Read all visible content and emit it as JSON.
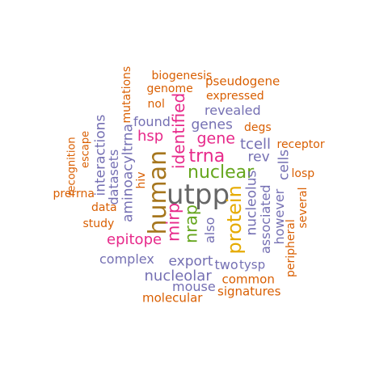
{
  "colors": {
    "orange": "#d95f02",
    "purple": "#7570b3",
    "magenta": "#e7298a",
    "green": "#66a61e",
    "gold": "#e6ab02",
    "brown": "#a6761d",
    "gray": "#666666"
  },
  "words": [
    {
      "text": "biogenesis",
      "color": "orange"
    },
    {
      "text": "genome",
      "color": "orange"
    },
    {
      "text": "pseudogene",
      "color": "orange"
    },
    {
      "text": "expressed",
      "color": "orange"
    },
    {
      "text": "nol",
      "color": "orange"
    },
    {
      "text": "revealed",
      "color": "purple"
    },
    {
      "text": "mutations",
      "color": "orange"
    },
    {
      "text": "identified",
      "color": "magenta"
    },
    {
      "text": "found",
      "color": "purple"
    },
    {
      "text": "genes",
      "color": "purple"
    },
    {
      "text": "degs",
      "color": "orange"
    },
    {
      "text": "hsp",
      "color": "magenta"
    },
    {
      "text": "gene",
      "color": "magenta"
    },
    {
      "text": "receptor",
      "color": "orange"
    },
    {
      "text": "tcell",
      "color": "purple"
    },
    {
      "text": "aminoacyltrna",
      "color": "purple"
    },
    {
      "text": "trna",
      "color": "magenta"
    },
    {
      "text": "rev",
      "color": "purple"
    },
    {
      "text": "escape",
      "color": "orange"
    },
    {
      "text": "recognition",
      "color": "orange"
    },
    {
      "text": "interactions",
      "color": "purple"
    },
    {
      "text": "cells",
      "color": "purple"
    },
    {
      "text": "nuclear",
      "color": "green"
    },
    {
      "text": "losp",
      "color": "orange"
    },
    {
      "text": "datasets",
      "color": "purple"
    },
    {
      "text": "hiv",
      "color": "orange"
    },
    {
      "text": "human",
      "color": "brown"
    },
    {
      "text": "utpp",
      "color": "gray"
    },
    {
      "text": "prerrna",
      "color": "orange"
    },
    {
      "text": "protein",
      "color": "gold"
    },
    {
      "text": "nucleolus",
      "color": "purple"
    },
    {
      "text": "several",
      "color": "orange"
    },
    {
      "text": "data",
      "color": "orange"
    },
    {
      "text": "associated",
      "color": "purple"
    },
    {
      "text": "however",
      "color": "purple"
    },
    {
      "text": "study",
      "color": "orange"
    },
    {
      "text": "mirp",
      "color": "magenta"
    },
    {
      "text": "nrap",
      "color": "green"
    },
    {
      "text": "also",
      "color": "purple"
    },
    {
      "text": "epitope",
      "color": "magenta"
    },
    {
      "text": "peripheral",
      "color": "orange"
    },
    {
      "text": "complex",
      "color": "purple"
    },
    {
      "text": "export",
      "color": "purple"
    },
    {
      "text": "two",
      "color": "purple"
    },
    {
      "text": "tysp",
      "color": "purple"
    },
    {
      "text": "nucleolar",
      "color": "purple"
    },
    {
      "text": "common",
      "color": "orange"
    },
    {
      "text": "mouse",
      "color": "purple"
    },
    {
      "text": "signatures",
      "color": "orange"
    },
    {
      "text": "molecular",
      "color": "orange"
    }
  ]
}
